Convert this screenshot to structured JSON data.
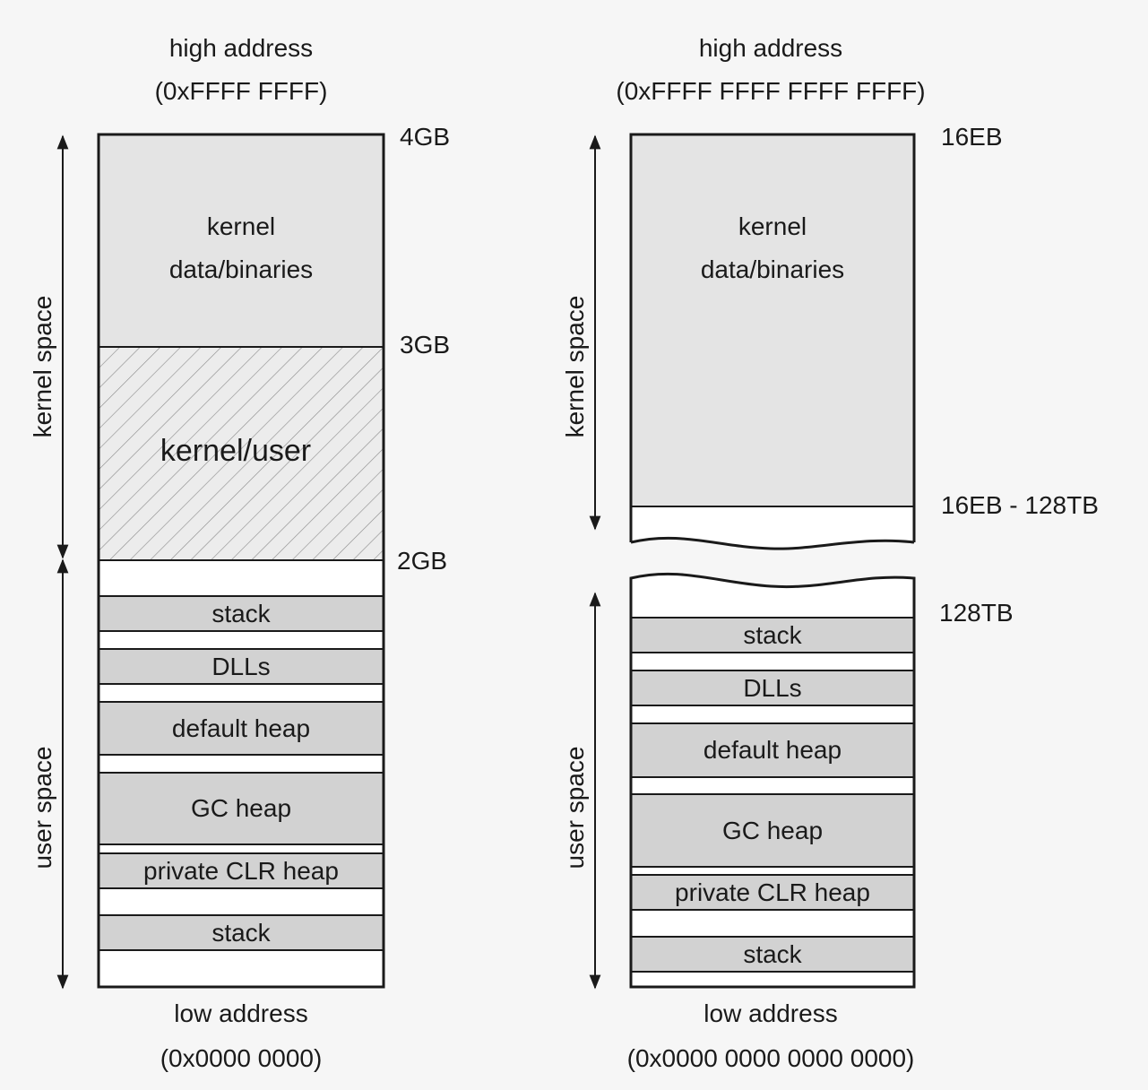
{
  "left": {
    "top_label": "high address",
    "top_value": "(0xFFFF FFFF)",
    "bottom_label": "low address",
    "bottom_value": "(0x0000 0000)",
    "marks": [
      "4GB",
      "3GB",
      "2GB"
    ],
    "kernel_region_line1": "kernel",
    "kernel_region_line2": "data/binaries",
    "shared_region": "kernel/user",
    "kernel_space": "kernel space",
    "user_space": "user space",
    "segments": [
      "stack",
      "DLLs",
      "default heap",
      "GC heap",
      "private CLR heap",
      "stack"
    ]
  },
  "right": {
    "top_label": "high address",
    "top_value": "(0xFFFF FFFF FFFF FFFF)",
    "bottom_label": "low address",
    "bottom_value": "(0x0000 0000 0000 0000)",
    "marks": [
      "16EB",
      "16EB - 128TB",
      "128TB"
    ],
    "kernel_region_line1": "kernel",
    "kernel_region_line2": "data/binaries",
    "kernel_space": "kernel space",
    "user_space": "user space",
    "segments": [
      "stack",
      "DLLs",
      "default heap",
      "GC heap",
      "private CLR heap",
      "stack"
    ]
  },
  "colors": {
    "kernel_fill": "#e4e4e4",
    "segment_fill": "#d2d2d2",
    "outline": "#1a1a1a",
    "background": "#f6f6f6"
  }
}
